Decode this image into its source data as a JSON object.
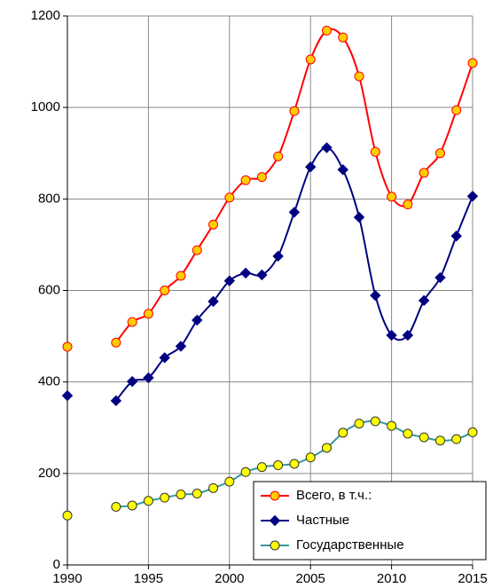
{
  "chart_data": {
    "type": "line",
    "x": [
      1990,
      1991,
      1992,
      1993,
      1994,
      1995,
      1996,
      1997,
      1998,
      1999,
      2000,
      2001,
      2002,
      2003,
      2004,
      2005,
      2006,
      2007,
      2008,
      2009,
      2010,
      2011,
      2012,
      2013,
      2014,
      2015
    ],
    "series": [
      {
        "name": "Всего, в т.ч.:",
        "color": "#ff0000",
        "marker": "circle",
        "marker_fill": "#ffcc00",
        "values": [
          477,
          null,
          null,
          486,
          531,
          549,
          600,
          632,
          688,
          744,
          803,
          841,
          848,
          893,
          992,
          1105,
          1168,
          1153,
          1068,
          903,
          805,
          788,
          857,
          900,
          994,
          1097
        ]
      },
      {
        "name": "Частные",
        "color": "#000080",
        "marker": "diamond",
        "marker_fill": "#000080",
        "values": [
          370,
          null,
          null,
          359,
          401,
          409,
          453,
          478,
          535,
          576,
          621,
          638,
          634,
          675,
          771,
          870,
          912,
          864,
          760,
          589,
          502,
          502,
          578,
          628,
          719,
          806
        ]
      },
      {
        "name": "Государственные",
        "color": "#339999",
        "marker": "circle",
        "marker_fill": "#ffff00",
        "values": [
          108,
          null,
          null,
          127,
          130,
          140,
          147,
          154,
          156,
          168,
          182,
          203,
          214,
          218,
          221,
          235,
          256,
          289,
          309,
          314,
          304,
          287,
          279,
          272,
          275,
          290
        ]
      }
    ],
    "xlim": [
      1990,
      2015
    ],
    "xticks": [
      1990,
      1995,
      2000,
      2005,
      2010,
      2015
    ],
    "ylim": [
      0,
      1200
    ],
    "yticks": [
      0,
      200,
      400,
      600,
      800,
      1000,
      1200
    ],
    "grid": true,
    "legend": "lower right"
  }
}
